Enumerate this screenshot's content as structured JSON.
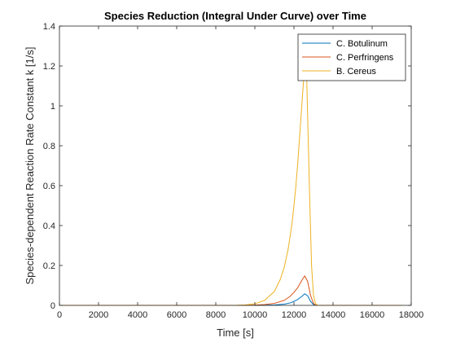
{
  "colors": {
    "axis": "#262626",
    "background": "#ffffff"
  },
  "chart_data": {
    "type": "line",
    "title": "Species Reduction (Integral Under Curve) over Time",
    "xlabel": "Time [s]",
    "ylabel": "Species-dependent Reaction Rate Constant k [1/s]",
    "xlim": [
      0,
      18000
    ],
    "ylim": [
      0,
      1.4
    ],
    "xticks": [
      0,
      2000,
      4000,
      6000,
      8000,
      10000,
      12000,
      14000,
      16000,
      18000
    ],
    "xtick_labels": [
      "0",
      "2000",
      "4000",
      "6000",
      "8000",
      "10000",
      "12000",
      "14000",
      "16000",
      "18000"
    ],
    "yticks": [
      0,
      0.2,
      0.4,
      0.6,
      0.8,
      1.0,
      1.2,
      1.4
    ],
    "ytick_labels": [
      "0",
      "0.2",
      "0.4",
      "0.6",
      "0.8",
      "1",
      "1.2",
      "1.4"
    ],
    "grid": false,
    "legend_position": "top-right",
    "series": [
      {
        "name": "C. Botulinum",
        "color": "#0072BD",
        "x": [
          0,
          9000,
          10000,
          10500,
          11000,
          11500,
          11800,
          12000,
          12200,
          12400,
          12550,
          12700,
          12850,
          13000,
          13100,
          13200,
          13500,
          14000,
          17500
        ],
        "y": [
          0,
          0,
          0.0002,
          0.0008,
          0.002,
          0.006,
          0.012,
          0.02,
          0.03,
          0.045,
          0.058,
          0.048,
          0.02,
          0.004,
          0.001,
          0,
          0,
          0,
          0
        ]
      },
      {
        "name": "C. Perfringens",
        "color": "#D95319",
        "x": [
          0,
          9000,
          9500,
          10000,
          10500,
          11000,
          11500,
          11800,
          12000,
          12200,
          12400,
          12550,
          12700,
          12850,
          13000,
          13100,
          13200,
          13500,
          14000,
          17500
        ],
        "y": [
          0,
          0,
          0.0005,
          0.0015,
          0.004,
          0.01,
          0.025,
          0.045,
          0.065,
          0.09,
          0.125,
          0.148,
          0.12,
          0.05,
          0.01,
          0.002,
          0,
          0,
          0,
          0
        ]
      },
      {
        "name": "B. Cereus",
        "color": "#EDB120",
        "x": [
          0,
          9000,
          9500,
          10000,
          10500,
          11000,
          11300,
          11500,
          11700,
          11900,
          12000,
          12100,
          12200,
          12300,
          12400,
          12500,
          12600,
          12650,
          12700,
          12800,
          12900,
          13000,
          13100,
          13200,
          13500,
          14000,
          17500
        ],
        "y": [
          0,
          0,
          0.002,
          0.008,
          0.025,
          0.07,
          0.13,
          0.19,
          0.28,
          0.41,
          0.5,
          0.6,
          0.72,
          0.86,
          1.0,
          1.14,
          1.2,
          1.15,
          0.95,
          0.55,
          0.2,
          0.05,
          0.01,
          0,
          0,
          0,
          0
        ]
      }
    ]
  }
}
